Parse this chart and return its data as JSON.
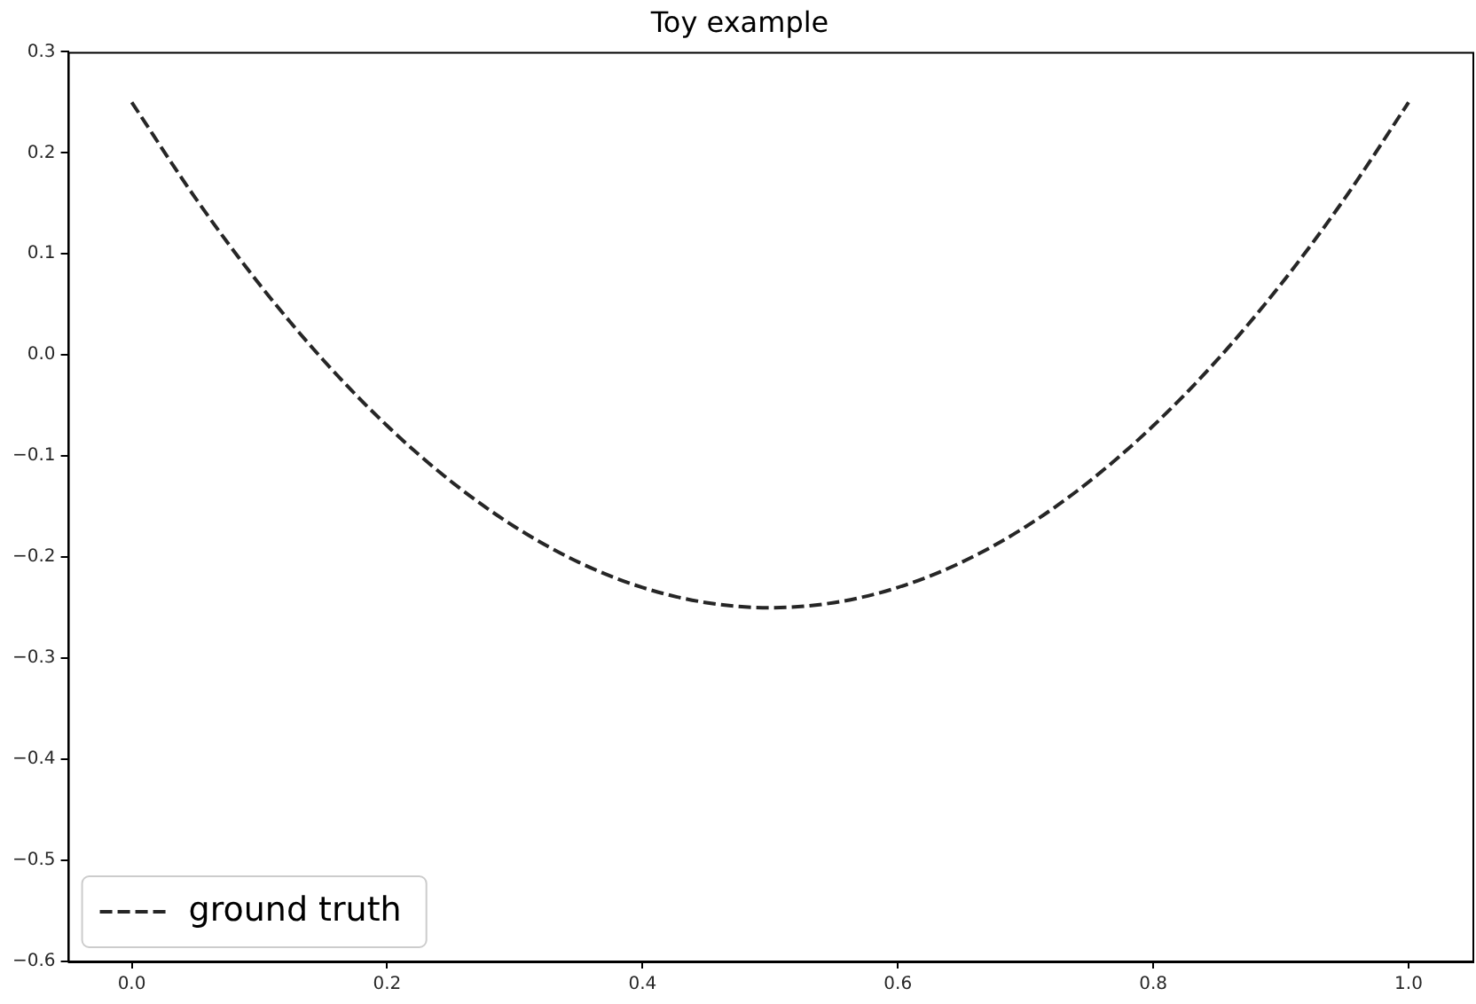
{
  "chart_data": {
    "type": "line",
    "title": "Toy example",
    "x": [
      0,
      0.05,
      0.1,
      0.15,
      0.2,
      0.25,
      0.3,
      0.35,
      0.4,
      0.45,
      0.5,
      0.55,
      0.6,
      0.65,
      0.7,
      0.75,
      0.8,
      0.85,
      0.9,
      0.95,
      1
    ],
    "series": [
      {
        "name": "ground truth",
        "color": "#262626",
        "values": [
          0.25,
          0.155,
          0.07,
          -0.005,
          -0.07,
          -0.125,
          -0.17,
          -0.205,
          -0.23,
          -0.245,
          -0.25,
          -0.245,
          -0.23,
          -0.205,
          -0.17,
          -0.125,
          -0.07,
          -0.005,
          0.07,
          0.155,
          0.25
        ]
      }
    ],
    "xlim": [
      -0.05,
      1.05
    ],
    "xticks": [
      {
        "value": 0,
        "label": "0.0"
      },
      {
        "value": 0.2,
        "label": "0.2"
      },
      {
        "value": 0.4,
        "label": "0.4"
      },
      {
        "value": 0.6,
        "label": "0.6"
      },
      {
        "value": 0.8,
        "label": "0.8"
      },
      {
        "value": 1,
        "label": "1.0"
      }
    ],
    "ylim": [
      -0.6,
      0.3
    ],
    "yticks": [
      {
        "value": -0.6,
        "label": "−0.6"
      },
      {
        "value": -0.5,
        "label": "−0.5"
      },
      {
        "value": -0.4,
        "label": "−0.4"
      },
      {
        "value": -0.3,
        "label": "−0.3"
      },
      {
        "value": -0.2,
        "label": "−0.2"
      },
      {
        "value": -0.1,
        "label": "−0.1"
      },
      {
        "value": 0,
        "label": "0.0"
      },
      {
        "value": 0.1,
        "label": "0.1"
      },
      {
        "value": 0.2,
        "label": "0.2"
      },
      {
        "value": 0.3,
        "label": "0.3"
      }
    ],
    "grid": false,
    "legend": "bottom left",
    "marker": "none",
    "line_style": "dashed"
  }
}
